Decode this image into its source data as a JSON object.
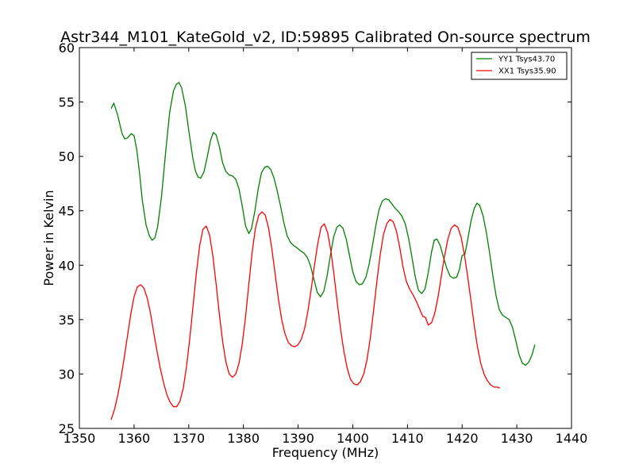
{
  "chart_data": {
    "type": "line",
    "title": "Astr344_M101_KateGold_v2, ID:59895 Calibrated On-source spectrum",
    "xlabel": "Frequency (MHz)",
    "ylabel": "Power in Kelvin",
    "xlim": [
      1350,
      1440
    ],
    "ylim": [
      25,
      60
    ],
    "xticks": [
      1350,
      1360,
      1370,
      1380,
      1390,
      1400,
      1410,
      1420,
      1430,
      1440
    ],
    "yticks": [
      25,
      30,
      35,
      40,
      45,
      50,
      55,
      60
    ],
    "grid": false,
    "legend_position": "top-right",
    "series": [
      {
        "name": "YY1 Tsys43.70",
        "color": "#008000",
        "points": [
          [
            1355.8,
            54.4
          ],
          [
            1356.3,
            54.9
          ],
          [
            1357.0,
            53.8
          ],
          [
            1357.8,
            52.1
          ],
          [
            1358.3,
            51.6
          ],
          [
            1358.8,
            51.7
          ],
          [
            1359.5,
            52.1
          ],
          [
            1360.0,
            51.9
          ],
          [
            1360.5,
            50.6
          ],
          [
            1361.0,
            48.5
          ],
          [
            1361.5,
            46.0
          ],
          [
            1362.2,
            43.7
          ],
          [
            1362.8,
            42.7
          ],
          [
            1363.3,
            42.3
          ],
          [
            1363.8,
            42.5
          ],
          [
            1364.3,
            43.5
          ],
          [
            1365.0,
            46.2
          ],
          [
            1365.8,
            50.5
          ],
          [
            1366.5,
            54.0
          ],
          [
            1367.2,
            56.0
          ],
          [
            1367.7,
            56.6
          ],
          [
            1368.2,
            56.8
          ],
          [
            1368.7,
            56.3
          ],
          [
            1369.4,
            54.6
          ],
          [
            1370.0,
            52.4
          ],
          [
            1370.7,
            50.0
          ],
          [
            1371.2,
            48.7
          ],
          [
            1371.7,
            48.1
          ],
          [
            1372.2,
            48.0
          ],
          [
            1372.8,
            48.6
          ],
          [
            1373.4,
            50.0
          ],
          [
            1374.0,
            51.5
          ],
          [
            1374.5,
            52.2
          ],
          [
            1375.0,
            52.0
          ],
          [
            1375.6,
            50.9
          ],
          [
            1376.2,
            49.4
          ],
          [
            1376.8,
            48.6
          ],
          [
            1377.4,
            48.3
          ],
          [
            1378.0,
            48.2
          ],
          [
            1378.6,
            47.9
          ],
          [
            1379.2,
            47.0
          ],
          [
            1379.8,
            45.4
          ],
          [
            1380.4,
            43.6
          ],
          [
            1381.0,
            42.9
          ],
          [
            1381.5,
            43.4
          ],
          [
            1382.1,
            45.0
          ],
          [
            1382.7,
            47.0
          ],
          [
            1383.3,
            48.5
          ],
          [
            1383.9,
            49.0
          ],
          [
            1384.4,
            49.1
          ],
          [
            1385.0,
            48.8
          ],
          [
            1385.6,
            48.0
          ],
          [
            1386.2,
            46.8
          ],
          [
            1386.8,
            45.4
          ],
          [
            1387.4,
            43.9
          ],
          [
            1388.0,
            42.7
          ],
          [
            1388.6,
            42.1
          ],
          [
            1389.2,
            41.8
          ],
          [
            1389.8,
            41.6
          ],
          [
            1390.5,
            41.3
          ],
          [
            1391.1,
            41.1
          ],
          [
            1391.7,
            40.7
          ],
          [
            1392.3,
            39.9
          ],
          [
            1392.9,
            38.7
          ],
          [
            1393.5,
            37.5
          ],
          [
            1394.1,
            37.1
          ],
          [
            1394.7,
            37.6
          ],
          [
            1395.3,
            39.0
          ],
          [
            1395.9,
            40.9
          ],
          [
            1396.5,
            42.6
          ],
          [
            1397.1,
            43.5
          ],
          [
            1397.6,
            43.7
          ],
          [
            1398.2,
            43.4
          ],
          [
            1398.8,
            42.4
          ],
          [
            1399.4,
            40.9
          ],
          [
            1400.0,
            39.4
          ],
          [
            1400.6,
            38.5
          ],
          [
            1401.2,
            38.2
          ],
          [
            1401.8,
            38.3
          ],
          [
            1402.4,
            38.9
          ],
          [
            1403.0,
            40.1
          ],
          [
            1403.6,
            41.8
          ],
          [
            1404.2,
            43.6
          ],
          [
            1404.8,
            45.1
          ],
          [
            1405.4,
            45.9
          ],
          [
            1406.0,
            46.1
          ],
          [
            1406.6,
            46.0
          ],
          [
            1407.2,
            45.6
          ],
          [
            1407.8,
            45.2
          ],
          [
            1408.4,
            44.9
          ],
          [
            1409.0,
            44.5
          ],
          [
            1409.6,
            43.8
          ],
          [
            1410.2,
            42.5
          ],
          [
            1410.8,
            40.8
          ],
          [
            1411.4,
            39.0
          ],
          [
            1412.0,
            37.7
          ],
          [
            1412.6,
            37.4
          ],
          [
            1413.2,
            37.8
          ],
          [
            1413.8,
            39.3
          ],
          [
            1414.4,
            41.2
          ],
          [
            1414.9,
            42.3
          ],
          [
            1415.4,
            42.4
          ],
          [
            1416.0,
            41.8
          ],
          [
            1416.6,
            40.7
          ],
          [
            1417.2,
            39.7
          ],
          [
            1417.8,
            39.0
          ],
          [
            1418.4,
            38.8
          ],
          [
            1419.0,
            38.9
          ],
          [
            1419.5,
            39.6
          ],
          [
            1420.0,
            40.9
          ],
          [
            1420.5,
            41.0
          ],
          [
            1421.0,
            42.3
          ],
          [
            1421.6,
            44.0
          ],
          [
            1422.2,
            45.2
          ],
          [
            1422.7,
            45.7
          ],
          [
            1423.2,
            45.5
          ],
          [
            1423.8,
            44.6
          ],
          [
            1424.4,
            43.1
          ],
          [
            1425.0,
            41.2
          ],
          [
            1425.6,
            39.1
          ],
          [
            1426.2,
            37.2
          ],
          [
            1426.8,
            35.9
          ],
          [
            1427.4,
            35.4
          ],
          [
            1428.0,
            35.2
          ],
          [
            1428.6,
            35.0
          ],
          [
            1429.2,
            34.3
          ],
          [
            1429.8,
            33.1
          ],
          [
            1430.4,
            31.8
          ],
          [
            1431.0,
            31.0
          ],
          [
            1431.6,
            30.8
          ],
          [
            1432.2,
            31.1
          ],
          [
            1432.8,
            31.8
          ],
          [
            1433.3,
            32.7
          ]
        ]
      },
      {
        "name": "XX1 Tsys35.90",
        "color": "#ff0000",
        "points": [
          [
            1355.8,
            25.8
          ],
          [
            1356.4,
            26.7
          ],
          [
            1357.0,
            28.0
          ],
          [
            1357.6,
            29.6
          ],
          [
            1358.2,
            31.5
          ],
          [
            1358.8,
            33.5
          ],
          [
            1359.4,
            35.5
          ],
          [
            1360.0,
            37.1
          ],
          [
            1360.6,
            38.0
          ],
          [
            1361.2,
            38.2
          ],
          [
            1361.8,
            37.9
          ],
          [
            1362.4,
            37.0
          ],
          [
            1363.0,
            35.6
          ],
          [
            1363.6,
            33.8
          ],
          [
            1364.2,
            32.1
          ],
          [
            1364.8,
            30.5
          ],
          [
            1365.4,
            29.2
          ],
          [
            1366.0,
            28.1
          ],
          [
            1366.6,
            27.4
          ],
          [
            1367.2,
            27.0
          ],
          [
            1367.8,
            27.0
          ],
          [
            1368.4,
            27.5
          ],
          [
            1369.0,
            28.7
          ],
          [
            1369.6,
            30.7
          ],
          [
            1370.2,
            33.3
          ],
          [
            1370.8,
            36.3
          ],
          [
            1371.4,
            39.3
          ],
          [
            1372.0,
            41.8
          ],
          [
            1372.6,
            43.3
          ],
          [
            1373.2,
            43.6
          ],
          [
            1373.8,
            42.8
          ],
          [
            1374.4,
            40.9
          ],
          [
            1375.0,
            38.3
          ],
          [
            1375.6,
            35.5
          ],
          [
            1376.2,
            33.0
          ],
          [
            1376.8,
            31.1
          ],
          [
            1377.4,
            30.0
          ],
          [
            1378.0,
            29.7
          ],
          [
            1378.6,
            30.0
          ],
          [
            1379.2,
            31.0
          ],
          [
            1379.8,
            32.8
          ],
          [
            1380.4,
            35.3
          ],
          [
            1381.0,
            38.3
          ],
          [
            1381.6,
            41.2
          ],
          [
            1382.2,
            43.4
          ],
          [
            1382.8,
            44.6
          ],
          [
            1383.4,
            44.9
          ],
          [
            1384.0,
            44.6
          ],
          [
            1384.6,
            43.4
          ],
          [
            1385.2,
            41.5
          ],
          [
            1385.8,
            39.2
          ],
          [
            1386.4,
            36.9
          ],
          [
            1387.0,
            35.0
          ],
          [
            1387.6,
            33.7
          ],
          [
            1388.2,
            32.9
          ],
          [
            1388.8,
            32.6
          ],
          [
            1389.4,
            32.5
          ],
          [
            1390.0,
            32.7
          ],
          [
            1390.6,
            33.2
          ],
          [
            1391.2,
            34.2
          ],
          [
            1391.8,
            35.8
          ],
          [
            1392.4,
            37.8
          ],
          [
            1393.0,
            40.0
          ],
          [
            1393.6,
            42.0
          ],
          [
            1394.2,
            43.5
          ],
          [
            1394.8,
            43.8
          ],
          [
            1395.4,
            43.0
          ],
          [
            1396.0,
            41.3
          ],
          [
            1396.6,
            39.0
          ],
          [
            1397.2,
            36.4
          ],
          [
            1397.8,
            34.0
          ],
          [
            1398.4,
            32.0
          ],
          [
            1399.0,
            30.5
          ],
          [
            1399.6,
            29.5
          ],
          [
            1400.2,
            29.1
          ],
          [
            1400.8,
            29.0
          ],
          [
            1401.4,
            29.3
          ],
          [
            1402.0,
            30.0
          ],
          [
            1402.6,
            31.3
          ],
          [
            1403.2,
            33.3
          ],
          [
            1403.8,
            35.8
          ],
          [
            1404.4,
            38.5
          ],
          [
            1405.0,
            40.9
          ],
          [
            1405.6,
            42.8
          ],
          [
            1406.2,
            43.8
          ],
          [
            1406.8,
            44.2
          ],
          [
            1407.4,
            44.0
          ],
          [
            1408.0,
            43.1
          ],
          [
            1408.6,
            41.6
          ],
          [
            1409.2,
            39.8
          ],
          [
            1409.8,
            38.5
          ],
          [
            1410.4,
            37.8
          ],
          [
            1411.0,
            37.3
          ],
          [
            1411.6,
            36.7
          ],
          [
            1412.2,
            36.0
          ],
          [
            1412.8,
            35.3
          ],
          [
            1413.3,
            35.2
          ],
          [
            1413.8,
            34.5
          ],
          [
            1414.4,
            34.7
          ],
          [
            1415.0,
            35.6
          ],
          [
            1415.6,
            37.1
          ],
          [
            1416.2,
            39.0
          ],
          [
            1416.8,
            40.9
          ],
          [
            1417.4,
            42.4
          ],
          [
            1418.0,
            43.4
          ],
          [
            1418.6,
            43.7
          ],
          [
            1419.2,
            43.5
          ],
          [
            1419.8,
            42.6
          ],
          [
            1420.4,
            41.0
          ],
          [
            1421.0,
            39.0
          ],
          [
            1421.6,
            36.8
          ],
          [
            1422.2,
            34.5
          ],
          [
            1422.8,
            32.5
          ],
          [
            1423.4,
            31.0
          ],
          [
            1424.0,
            30.0
          ],
          [
            1424.6,
            29.4
          ],
          [
            1425.2,
            29.0
          ],
          [
            1425.8,
            28.8
          ],
          [
            1426.4,
            28.8
          ],
          [
            1426.9,
            28.7
          ]
        ]
      }
    ]
  }
}
